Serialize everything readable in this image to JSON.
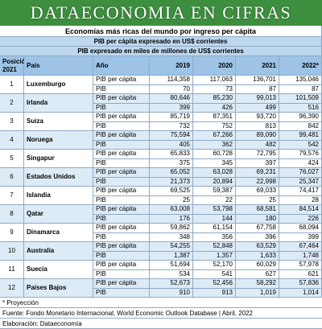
{
  "header": {
    "title": "DATAECONOMIA EN CIFRAS"
  },
  "table": {
    "title": "Economías más ricas del mundo por ingreso per cápita",
    "notes": [
      "PIB per cápita expresado en US$ corrientes",
      "PIB expresado en miles de millones de US$ corrientes"
    ],
    "columns": [
      "Posición 2021",
      "País",
      "Año",
      "2019",
      "2020",
      "2021",
      "2022*"
    ],
    "rows": [
      {
        "position": "1",
        "country": "Luxemburgo",
        "lines": [
          {
            "label": "PIB per cápita",
            "values": [
              "114,358",
              "117,063",
              "136,701",
              "135,046"
            ]
          },
          {
            "label": "PIB",
            "values": [
              "70",
              "73",
              "87",
              "87"
            ]
          }
        ]
      },
      {
        "position": "2",
        "country": "Irlanda",
        "lines": [
          {
            "label": "PIB per cápita",
            "values": [
              "80,646",
              "85,230",
              "99,013",
              "101,509"
            ]
          },
          {
            "label": "PIB",
            "values": [
              "399",
              "426",
              "499",
              "516"
            ]
          }
        ]
      },
      {
        "position": "3",
        "country": "Suiza",
        "lines": [
          {
            "label": "PIB per cápita",
            "values": [
              "85,719",
              "87,351",
              "93,720",
              "96,390"
            ]
          },
          {
            "label": "PIB",
            "values": [
              "732",
              "752",
              "813",
              "842"
            ]
          }
        ]
      },
      {
        "position": "4",
        "country": "Noruega",
        "lines": [
          {
            "label": "PIB per cápita",
            "values": [
              "75,594",
              "67,266",
              "89,090",
              "99,481"
            ]
          },
          {
            "label": "PIB",
            "values": [
              "405",
              "362",
              "482",
              "542"
            ]
          }
        ]
      },
      {
        "position": "5",
        "country": "Singapur",
        "lines": [
          {
            "label": "PIB per cápita",
            "values": [
              "65,833",
              "60,728",
              "72,795",
              "79,576"
            ]
          },
          {
            "label": "PIB",
            "values": [
              "375",
              "345",
              "397",
              "424"
            ]
          }
        ]
      },
      {
        "position": "6",
        "country": "Estados Unidos",
        "lines": [
          {
            "label": "PIB per cápita",
            "values": [
              "65,052",
              "63,028",
              "69,231",
              "76,027"
            ]
          },
          {
            "label": "PIB",
            "values": [
              "21,373",
              "20,894",
              "22,998",
              "25,347"
            ]
          }
        ]
      },
      {
        "position": "7",
        "country": "Islandia",
        "lines": [
          {
            "label": "PIB per cápita",
            "values": [
              "69,525",
              "59,387",
              "69,033",
              "74,417"
            ]
          },
          {
            "label": "PIB",
            "values": [
              "25",
              "22",
              "25",
              "28"
            ]
          }
        ]
      },
      {
        "position": "8",
        "country": "Qatar",
        "lines": [
          {
            "label": "PIB per cápita",
            "values": [
              "63,008",
              "53,798",
              "68,581",
              "84,514"
            ]
          },
          {
            "label": "PIB",
            "values": [
              "176",
              "144",
              "180",
              "226"
            ]
          }
        ]
      },
      {
        "position": "9",
        "country": "Dinamarca",
        "lines": [
          {
            "label": "PIB per cápita",
            "values": [
              "59,862",
              "61,154",
              "67,758",
              "68,094"
            ]
          },
          {
            "label": "PIB",
            "values": [
              "348",
              "356",
              "396",
              "399"
            ]
          }
        ]
      },
      {
        "position": "10",
        "country": "Australia",
        "lines": [
          {
            "label": "PIB per cápita",
            "values": [
              "54,255",
              "52,848",
              "63,529",
              "67,464"
            ]
          },
          {
            "label": "PIB",
            "values": [
              "1,387",
              "1,357",
              "1,633",
              "1,748"
            ]
          }
        ]
      },
      {
        "position": "11",
        "country": "Suecia",
        "lines": [
          {
            "label": "PIB per cápita",
            "values": [
              "51,694",
              "52,170",
              "60,029",
              "57,978"
            ]
          },
          {
            "label": "PIB",
            "values": [
              "534",
              "541",
              "627",
              "621"
            ]
          }
        ]
      },
      {
        "position": "12",
        "country": "Países Bajos",
        "lines": [
          {
            "label": "PIB per cápita",
            "values": [
              "52,673",
              "52,456",
              "58,292",
              "57,836"
            ]
          },
          {
            "label": "PIB",
            "values": [
              "910",
              "913",
              "1,019",
              "1,014"
            ]
          }
        ]
      }
    ]
  },
  "footer": {
    "lines": [
      "* Proyección",
      "Fuente: Fondo Monetario Internacional, World Economic Outlook Database | Abril, 2022",
      "Elaboración: Dataeconomía"
    ]
  }
}
